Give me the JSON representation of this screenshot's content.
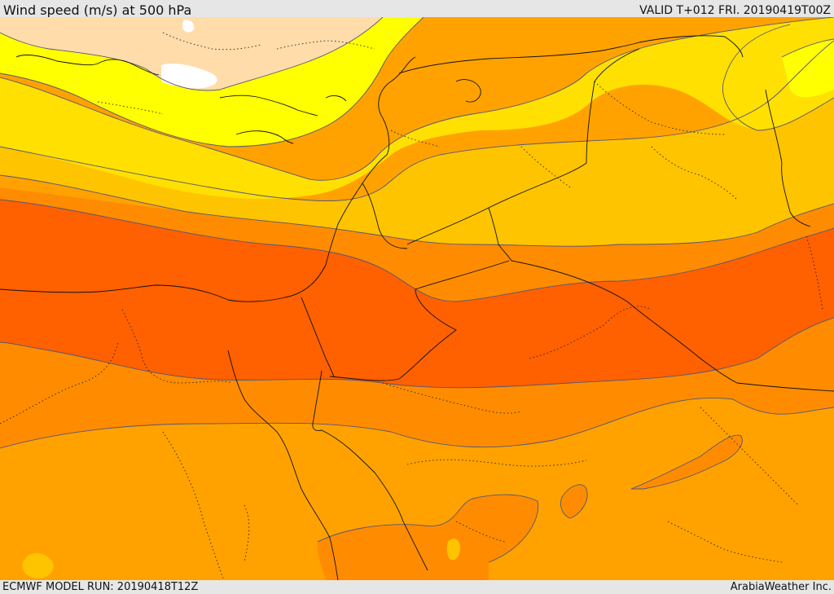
{
  "header": {
    "title": "Wind speed (m/s) at 500 hPa",
    "valid": "VALID T+012 FRI. 20190419T00Z"
  },
  "footer": {
    "model_run": "ECMWF MODEL RUN: 20190418T12Z",
    "credit": "ArabiaWeather Inc."
  },
  "map": {
    "colors": {
      "white": "#ffffff",
      "peach": "#ffdcaa",
      "yellow": "#ffff00",
      "gold": "#ffe000",
      "light_orange": "#ffc400",
      "orange": "#ffa200",
      "dark_orange": "#ff8c00",
      "red_orange": "#ff6000",
      "contour": "#555577",
      "coast": "#000000"
    }
  }
}
